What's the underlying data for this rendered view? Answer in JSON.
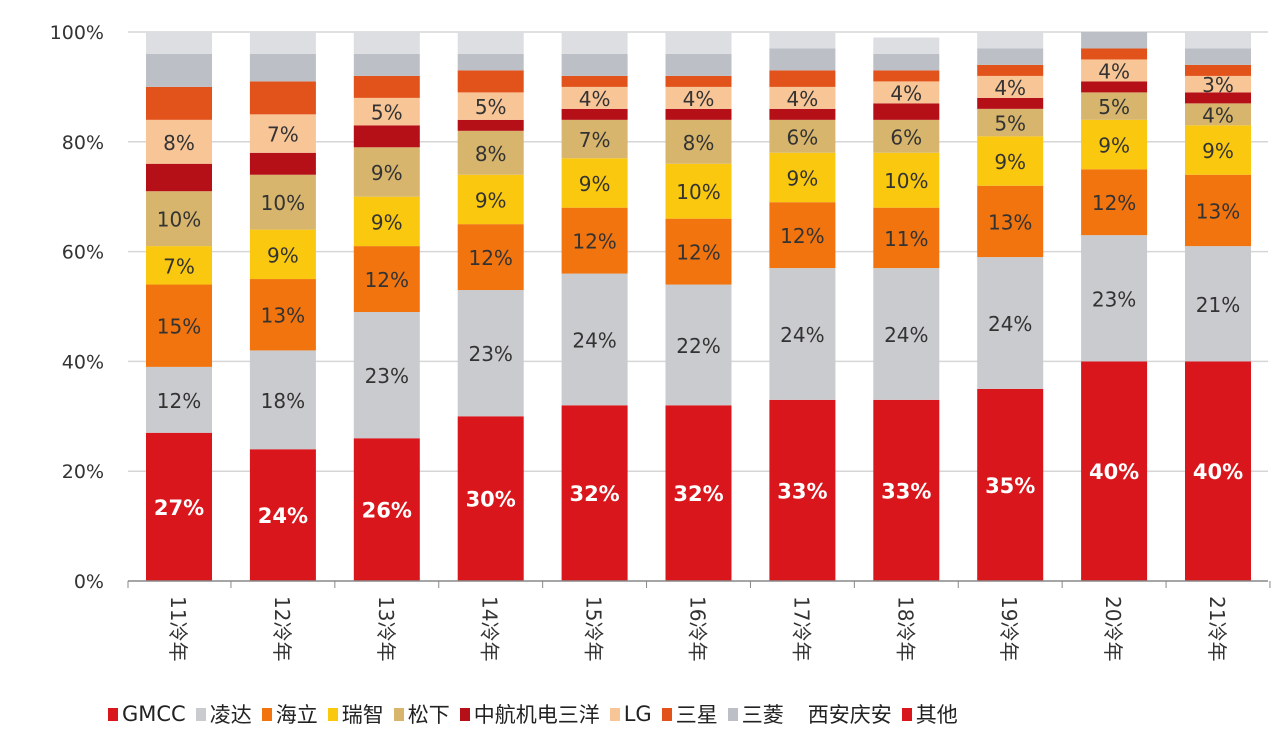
{
  "chart_data": {
    "type": "bar",
    "stacked": true,
    "categories": [
      "11冷年",
      "12冷年",
      "13冷年",
      "14冷年",
      "15冷年",
      "16冷年",
      "17冷年",
      "18冷年",
      "19冷年",
      "20冷年",
      "21冷年"
    ],
    "ylim": [
      0,
      100
    ],
    "yticks": [
      "0%",
      "20%",
      "40%",
      "60%",
      "80%",
      "100%"
    ],
    "grid": true,
    "legend_placement": "bottom",
    "series": [
      {
        "name": "GMCC",
        "color": "#d9161c",
        "label_color": "#ffffff",
        "labeled": true,
        "values": [
          27,
          24,
          26,
          30,
          32,
          32,
          33,
          33,
          35,
          40,
          40
        ]
      },
      {
        "name": "凌达",
        "color": "#cacbce",
        "label_color": "#333333",
        "labeled": true,
        "values": [
          12,
          18,
          23,
          23,
          24,
          22,
          24,
          24,
          24,
          23,
          21
        ]
      },
      {
        "name": "海立",
        "color": "#f2740f",
        "label_color": "#333333",
        "labeled": true,
        "values": [
          15,
          13,
          12,
          12,
          12,
          12,
          12,
          11,
          13,
          12,
          13
        ]
      },
      {
        "name": "瑞智",
        "color": "#f9c80f",
        "label_color": "#333333",
        "labeled": true,
        "values": [
          7,
          9,
          9,
          9,
          9,
          10,
          9,
          10,
          9,
          9,
          9
        ]
      },
      {
        "name": "松下",
        "color": "#d7b56c",
        "label_color": "#333333",
        "labeled": true,
        "values": [
          10,
          10,
          9,
          8,
          7,
          8,
          6,
          6,
          5,
          5,
          4
        ]
      },
      {
        "name": "中航机电三洋",
        "color": "#b50f17",
        "label_color": "#333333",
        "labeled": false,
        "values": [
          5,
          4,
          4,
          2,
          2,
          2,
          2,
          3,
          2,
          2,
          2
        ]
      },
      {
        "name": "LG",
        "color": "#f8c597",
        "label_color": "#333333",
        "labeled": true,
        "values": [
          8,
          7,
          5,
          5,
          4,
          4,
          4,
          4,
          4,
          4,
          3
        ]
      },
      {
        "name": "三星",
        "color": "#e2521b",
        "label_color": "#333333",
        "labeled": false,
        "values": [
          6,
          6,
          4,
          4,
          2,
          2,
          3,
          2,
          2,
          2,
          2
        ]
      },
      {
        "name": "三菱",
        "color": "#bcbfc5",
        "label_color": "#333333",
        "labeled": false,
        "values": [
          6,
          5,
          4,
          3,
          4,
          4,
          4,
          3,
          3,
          3,
          3
        ]
      },
      {
        "name": "西安庆安",
        "color": "#dcdee2",
        "label_color": "#333333",
        "labeled": false,
        "values": [
          4,
          4,
          4,
          4,
          4,
          4,
          3,
          3,
          3,
          0,
          3
        ]
      },
      {
        "name": "其他",
        "color": "#d9161c",
        "label_color": "#333333",
        "labeled": false,
        "values": [
          0,
          0,
          0,
          0,
          0,
          0,
          0,
          0,
          0,
          0,
          0
        ]
      }
    ]
  }
}
